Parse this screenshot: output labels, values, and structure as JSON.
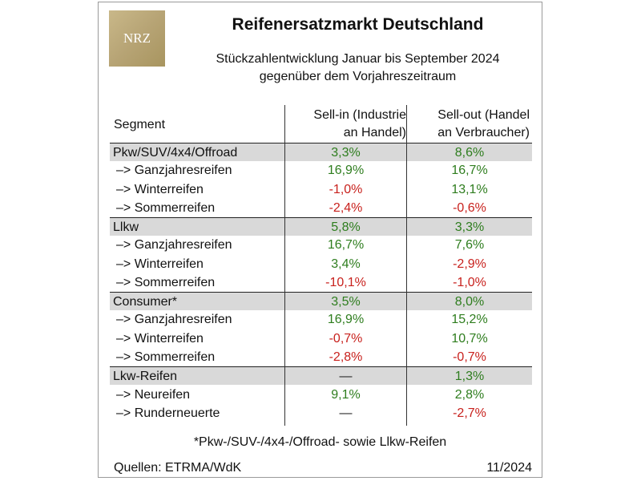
{
  "logo_text": "NRZ",
  "title": "Reifenersatzmarkt Deutschland",
  "subtitle_line1": "Stückzahlentwicklung Januar bis September 2024",
  "subtitle_line2": "gegenüber dem Vorjahreszeitraum",
  "columns": {
    "segment": "Segment",
    "sellin_line1": "Sell-in (Industrie",
    "sellin_line2": "an Handel)",
    "sellout_line1": "Sell-out (Handel",
    "sellout_line2": "an Verbraucher)"
  },
  "rows": [
    {
      "label": "Pkw/SUV/4x4/Offroad",
      "type": "cat",
      "sellin": "3,3%",
      "sellout": "8,6%"
    },
    {
      "label": "–> Ganzjahresreifen",
      "type": "sub",
      "sellin": "16,9%",
      "sellout": "16,7%"
    },
    {
      "label": "–> Winterreifen",
      "type": "sub",
      "sellin": "-1,0%",
      "sellout": "13,1%"
    },
    {
      "label": "–> Sommerreifen",
      "type": "sub",
      "sellin": "-2,4%",
      "sellout": "-0,6%"
    },
    {
      "label": "Llkw",
      "type": "cat",
      "sellin": "5,8%",
      "sellout": "3,3%"
    },
    {
      "label": "–> Ganzjahresreifen",
      "type": "sub",
      "sellin": "16,7%",
      "sellout": "7,6%"
    },
    {
      "label": "–> Winterreifen",
      "type": "sub",
      "sellin": "3,4%",
      "sellout": "-2,9%"
    },
    {
      "label": "–> Sommerreifen",
      "type": "sub",
      "sellin": "-10,1%",
      "sellout": "-1,0%"
    },
    {
      "label": "Consumer*",
      "type": "cat",
      "sellin": "3,5%",
      "sellout": "8,0%"
    },
    {
      "label": "–> Ganzjahresreifen",
      "type": "sub",
      "sellin": "16,9%",
      "sellout": "15,2%"
    },
    {
      "label": "–> Winterreifen",
      "type": "sub",
      "sellin": "-0,7%",
      "sellout": "10,7%"
    },
    {
      "label": "–> Sommerreifen",
      "type": "sub",
      "sellin": "-2,8%",
      "sellout": "-0,7%"
    },
    {
      "label": "Lkw-Reifen",
      "type": "cat",
      "sellin": "—",
      "sellout": "1,3%"
    },
    {
      "label": "–> Neureifen",
      "type": "sub",
      "sellin": "9,1%",
      "sellout": "2,8%"
    },
    {
      "label": "–> Runderneuerte",
      "type": "sub",
      "sellin": "—",
      "sellout": "-2,7%"
    }
  ],
  "colors": {
    "positive": "#2e7d1e",
    "negative": "#c8211d",
    "category_band": "#d9d9d9"
  },
  "footnote": "*Pkw-/SUV-/4x4-/Offroad- sowie Llkw-Reifen",
  "sources": "Quellen: ETRMA/WdK",
  "date": "11/2024"
}
